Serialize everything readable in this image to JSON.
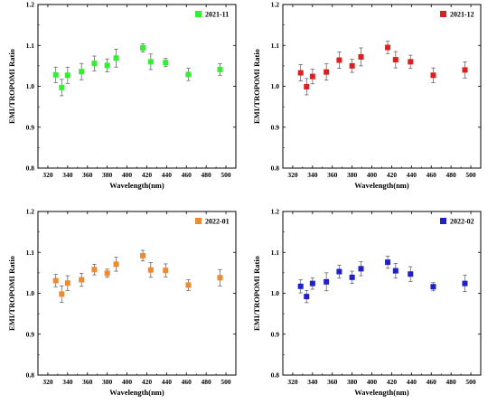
{
  "chart_data": [
    {
      "type": "scatter",
      "legend": "2021-11",
      "color": "#33ee33",
      "marker": "circle",
      "xlabel": "Wavelength(nm)",
      "ylabel": "EMI/TROPOMI Ratio",
      "xlim": [
        310,
        510
      ],
      "ylim": [
        0.8,
        1.2
      ],
      "xticks": [
        "320",
        "340",
        "360",
        "380",
        "400",
        "420",
        "440",
        "460",
        "480",
        "500"
      ],
      "yticks": [
        "0.8",
        "0.9",
        "1.0",
        "1.1",
        "1.2"
      ],
      "legend_position": "top-right",
      "x": [
        328,
        334,
        340,
        354,
        367,
        380,
        389,
        416,
        424,
        439,
        462,
        494
      ],
      "y": [
        1.028,
        0.997,
        1.027,
        1.036,
        1.056,
        1.051,
        1.069,
        1.094,
        1.06,
        1.058,
        1.029,
        1.041
      ],
      "err": [
        0.019,
        0.02,
        0.02,
        0.02,
        0.018,
        0.016,
        0.022,
        0.01,
        0.019,
        0.01,
        0.015,
        0.014
      ]
    },
    {
      "type": "scatter",
      "legend": "2021-12",
      "color": "#dd1f1f",
      "marker": "square",
      "xlabel": "Wavelength(nm)",
      "ylabel": "EMI/TROPOMI Ratio",
      "xlim": [
        310,
        510
      ],
      "ylim": [
        0.8,
        1.2
      ],
      "xticks": [
        "320",
        "340",
        "360",
        "380",
        "400",
        "420",
        "440",
        "460",
        "480",
        "500"
      ],
      "yticks": [
        "0.8",
        "0.9",
        "1.0",
        "1.1",
        "1.2"
      ],
      "legend_position": "top-right",
      "x": [
        328,
        334,
        340,
        354,
        367,
        380,
        389,
        416,
        424,
        439,
        462,
        494
      ],
      "y": [
        1.033,
        0.999,
        1.024,
        1.035,
        1.064,
        1.05,
        1.072,
        1.095,
        1.065,
        1.06,
        1.027,
        1.04
      ],
      "err": [
        0.02,
        0.02,
        0.018,
        0.02,
        0.02,
        0.016,
        0.022,
        0.015,
        0.02,
        0.016,
        0.018,
        0.02
      ]
    },
    {
      "type": "scatter",
      "legend": "2022-01",
      "color": "#ee8a30",
      "marker": "square",
      "xlabel": "Wavelength(nm)",
      "ylabel": "EMI/TROPOMI Ratio",
      "xlim": [
        310,
        510
      ],
      "ylim": [
        0.8,
        1.2
      ],
      "xticks": [
        "320",
        "340",
        "360",
        "380",
        "400",
        "420",
        "440",
        "460",
        "480",
        "500"
      ],
      "yticks": [
        "0.8",
        "0.9",
        "1.0",
        "1.1",
        "1.2"
      ],
      "legend_position": "top-right",
      "x": [
        328,
        334,
        340,
        354,
        367,
        380,
        389,
        416,
        424,
        439,
        462,
        494
      ],
      "y": [
        1.031,
        0.998,
        1.025,
        1.033,
        1.058,
        1.049,
        1.071,
        1.092,
        1.057,
        1.056,
        1.02,
        1.038
      ],
      "err": [
        0.015,
        0.02,
        0.018,
        0.016,
        0.013,
        0.01,
        0.017,
        0.013,
        0.018,
        0.016,
        0.013,
        0.02
      ]
    },
    {
      "type": "scatter",
      "legend": "2022-02",
      "color": "#1f1fcc",
      "marker": "square",
      "xlabel": "Wavelength(nm)",
      "ylabel": "EMI/TROPOMI Ratio",
      "xlim": [
        310,
        510
      ],
      "ylim": [
        0.8,
        1.2
      ],
      "xticks": [
        "320",
        "340",
        "360",
        "380",
        "400",
        "420",
        "440",
        "460",
        "480",
        "500"
      ],
      "yticks": [
        "0.8",
        "0.9",
        "1.0",
        "1.1",
        "1.2"
      ],
      "legend_position": "top-right",
      "x": [
        328,
        334,
        340,
        354,
        367,
        380,
        389,
        416,
        424,
        439,
        462,
        494
      ],
      "y": [
        1.017,
        0.992,
        1.024,
        1.028,
        1.053,
        1.039,
        1.06,
        1.076,
        1.055,
        1.047,
        1.016,
        1.024
      ],
      "err": [
        0.016,
        0.015,
        0.014,
        0.022,
        0.016,
        0.015,
        0.017,
        0.015,
        0.018,
        0.018,
        0.01,
        0.02
      ]
    }
  ]
}
